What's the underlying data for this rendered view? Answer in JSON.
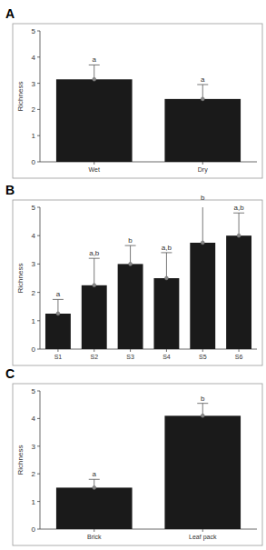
{
  "chart_data": [
    {
      "type": "bar",
      "title": "A",
      "y_label": "Richness",
      "categories": [
        "Wet",
        "Dry"
      ],
      "values": [
        3.15,
        2.4
      ],
      "errors": [
        0.55,
        0.55
      ],
      "annotations": [
        "a",
        "a"
      ],
      "color": "#1a1a1a",
      "ylim": [
        0,
        5
      ],
      "yticks": [
        0,
        1,
        2,
        3,
        4,
        5
      ],
      "grid": false
    },
    {
      "type": "bar",
      "title": "B",
      "y_label": "Richness",
      "categories": [
        "S1",
        "S2",
        "S3",
        "S4",
        "S5",
        "S6"
      ],
      "values": [
        1.25,
        2.25,
        3.0,
        2.5,
        3.75,
        4.0
      ],
      "errors": [
        0.5,
        0.95,
        0.65,
        0.9,
        1.4,
        0.8
      ],
      "annotations": [
        "a",
        "a,b",
        "b",
        "a,b",
        "b",
        "a,b"
      ],
      "color": "#1a1a1a",
      "ylim": [
        0,
        5
      ],
      "yticks": [
        0,
        1,
        2,
        3,
        4,
        5
      ],
      "grid": false
    },
    {
      "type": "bar",
      "title": "C",
      "y_label": "Richness",
      "categories": [
        "Brick",
        "Leaf pack"
      ],
      "values": [
        1.5,
        4.1
      ],
      "errors": [
        0.3,
        0.45
      ],
      "annotations": [
        "a",
        "b"
      ],
      "color": "#1a1a1a",
      "ylim": [
        0,
        5
      ],
      "yticks": [
        0,
        1,
        2,
        3,
        4,
        5
      ],
      "grid": false
    }
  ]
}
